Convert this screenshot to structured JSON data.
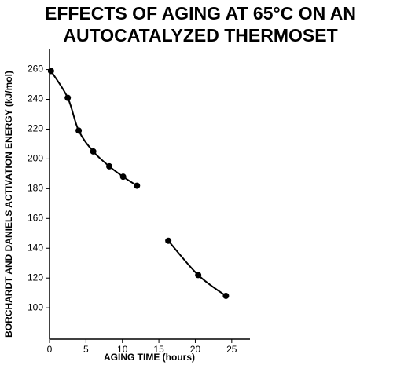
{
  "chart_data": {
    "type": "scatter",
    "title": [
      "EFFECTS OF AGING AT 65°C ON AN",
      "AUTOCATALYZED THERMOSET"
    ],
    "x_label": "AGING TIME (hours)",
    "y_label": "BORCHARDT AND DANIELS ACTIVATION ENERGY (kJ/mol)",
    "xlim": [
      0,
      27.5
    ],
    "ylim": [
      79,
      274
    ],
    "xticks": [
      0,
      5,
      10,
      15,
      20,
      25
    ],
    "yticks": [
      100,
      120,
      140,
      160,
      180,
      200,
      220,
      240,
      260
    ],
    "smooth_line": true,
    "grid": false,
    "series": [
      {
        "color": "#000000",
        "x": [
          0.2,
          2.5,
          4,
          6,
          8.2,
          10.1,
          12
        ],
        "values": [
          259,
          241,
          219,
          205,
          195,
          188,
          182
        ]
      },
      {
        "color": "#000000",
        "x": [
          16.3,
          20.4,
          24.2
        ],
        "values": [
          145,
          122,
          108
        ]
      }
    ]
  }
}
